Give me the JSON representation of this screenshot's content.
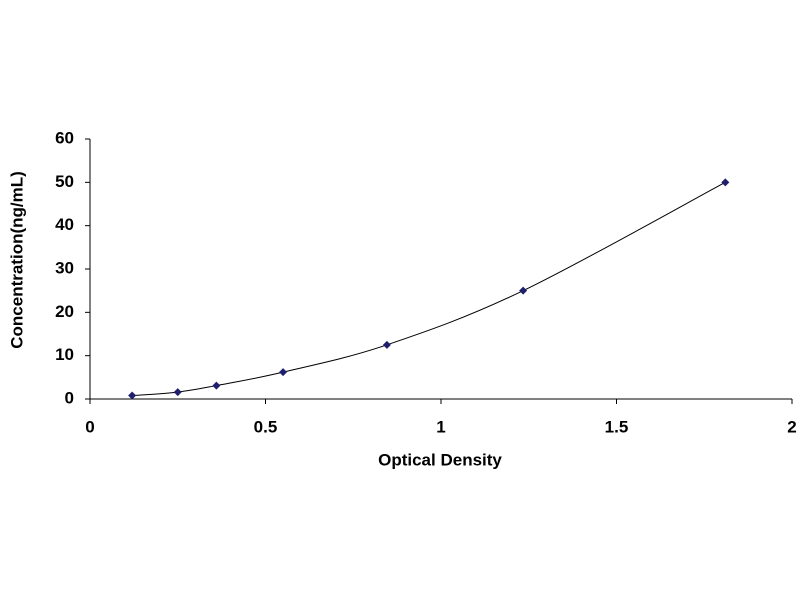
{
  "chart_data": {
    "type": "scatter",
    "x_label": "Optical Density",
    "y_label": "Concentration(ng/mL)",
    "x": [
      0.12,
      0.25,
      0.36,
      0.55,
      0.846,
      1.234,
      1.81
    ],
    "series": [
      {
        "color": "#1f1f6e",
        "values": [
          0.8,
          1.6,
          3.1,
          6.2,
          12.5,
          25,
          50
        ]
      }
    ],
    "trendline": true,
    "trendline_color": "#000000",
    "xlim": [
      0,
      2
    ],
    "xticks": [
      0,
      0.5,
      1,
      1.5,
      2
    ],
    "ylim": [
      0,
      60
    ],
    "yticks": [
      0,
      10,
      20,
      30,
      40,
      50,
      60
    ]
  }
}
